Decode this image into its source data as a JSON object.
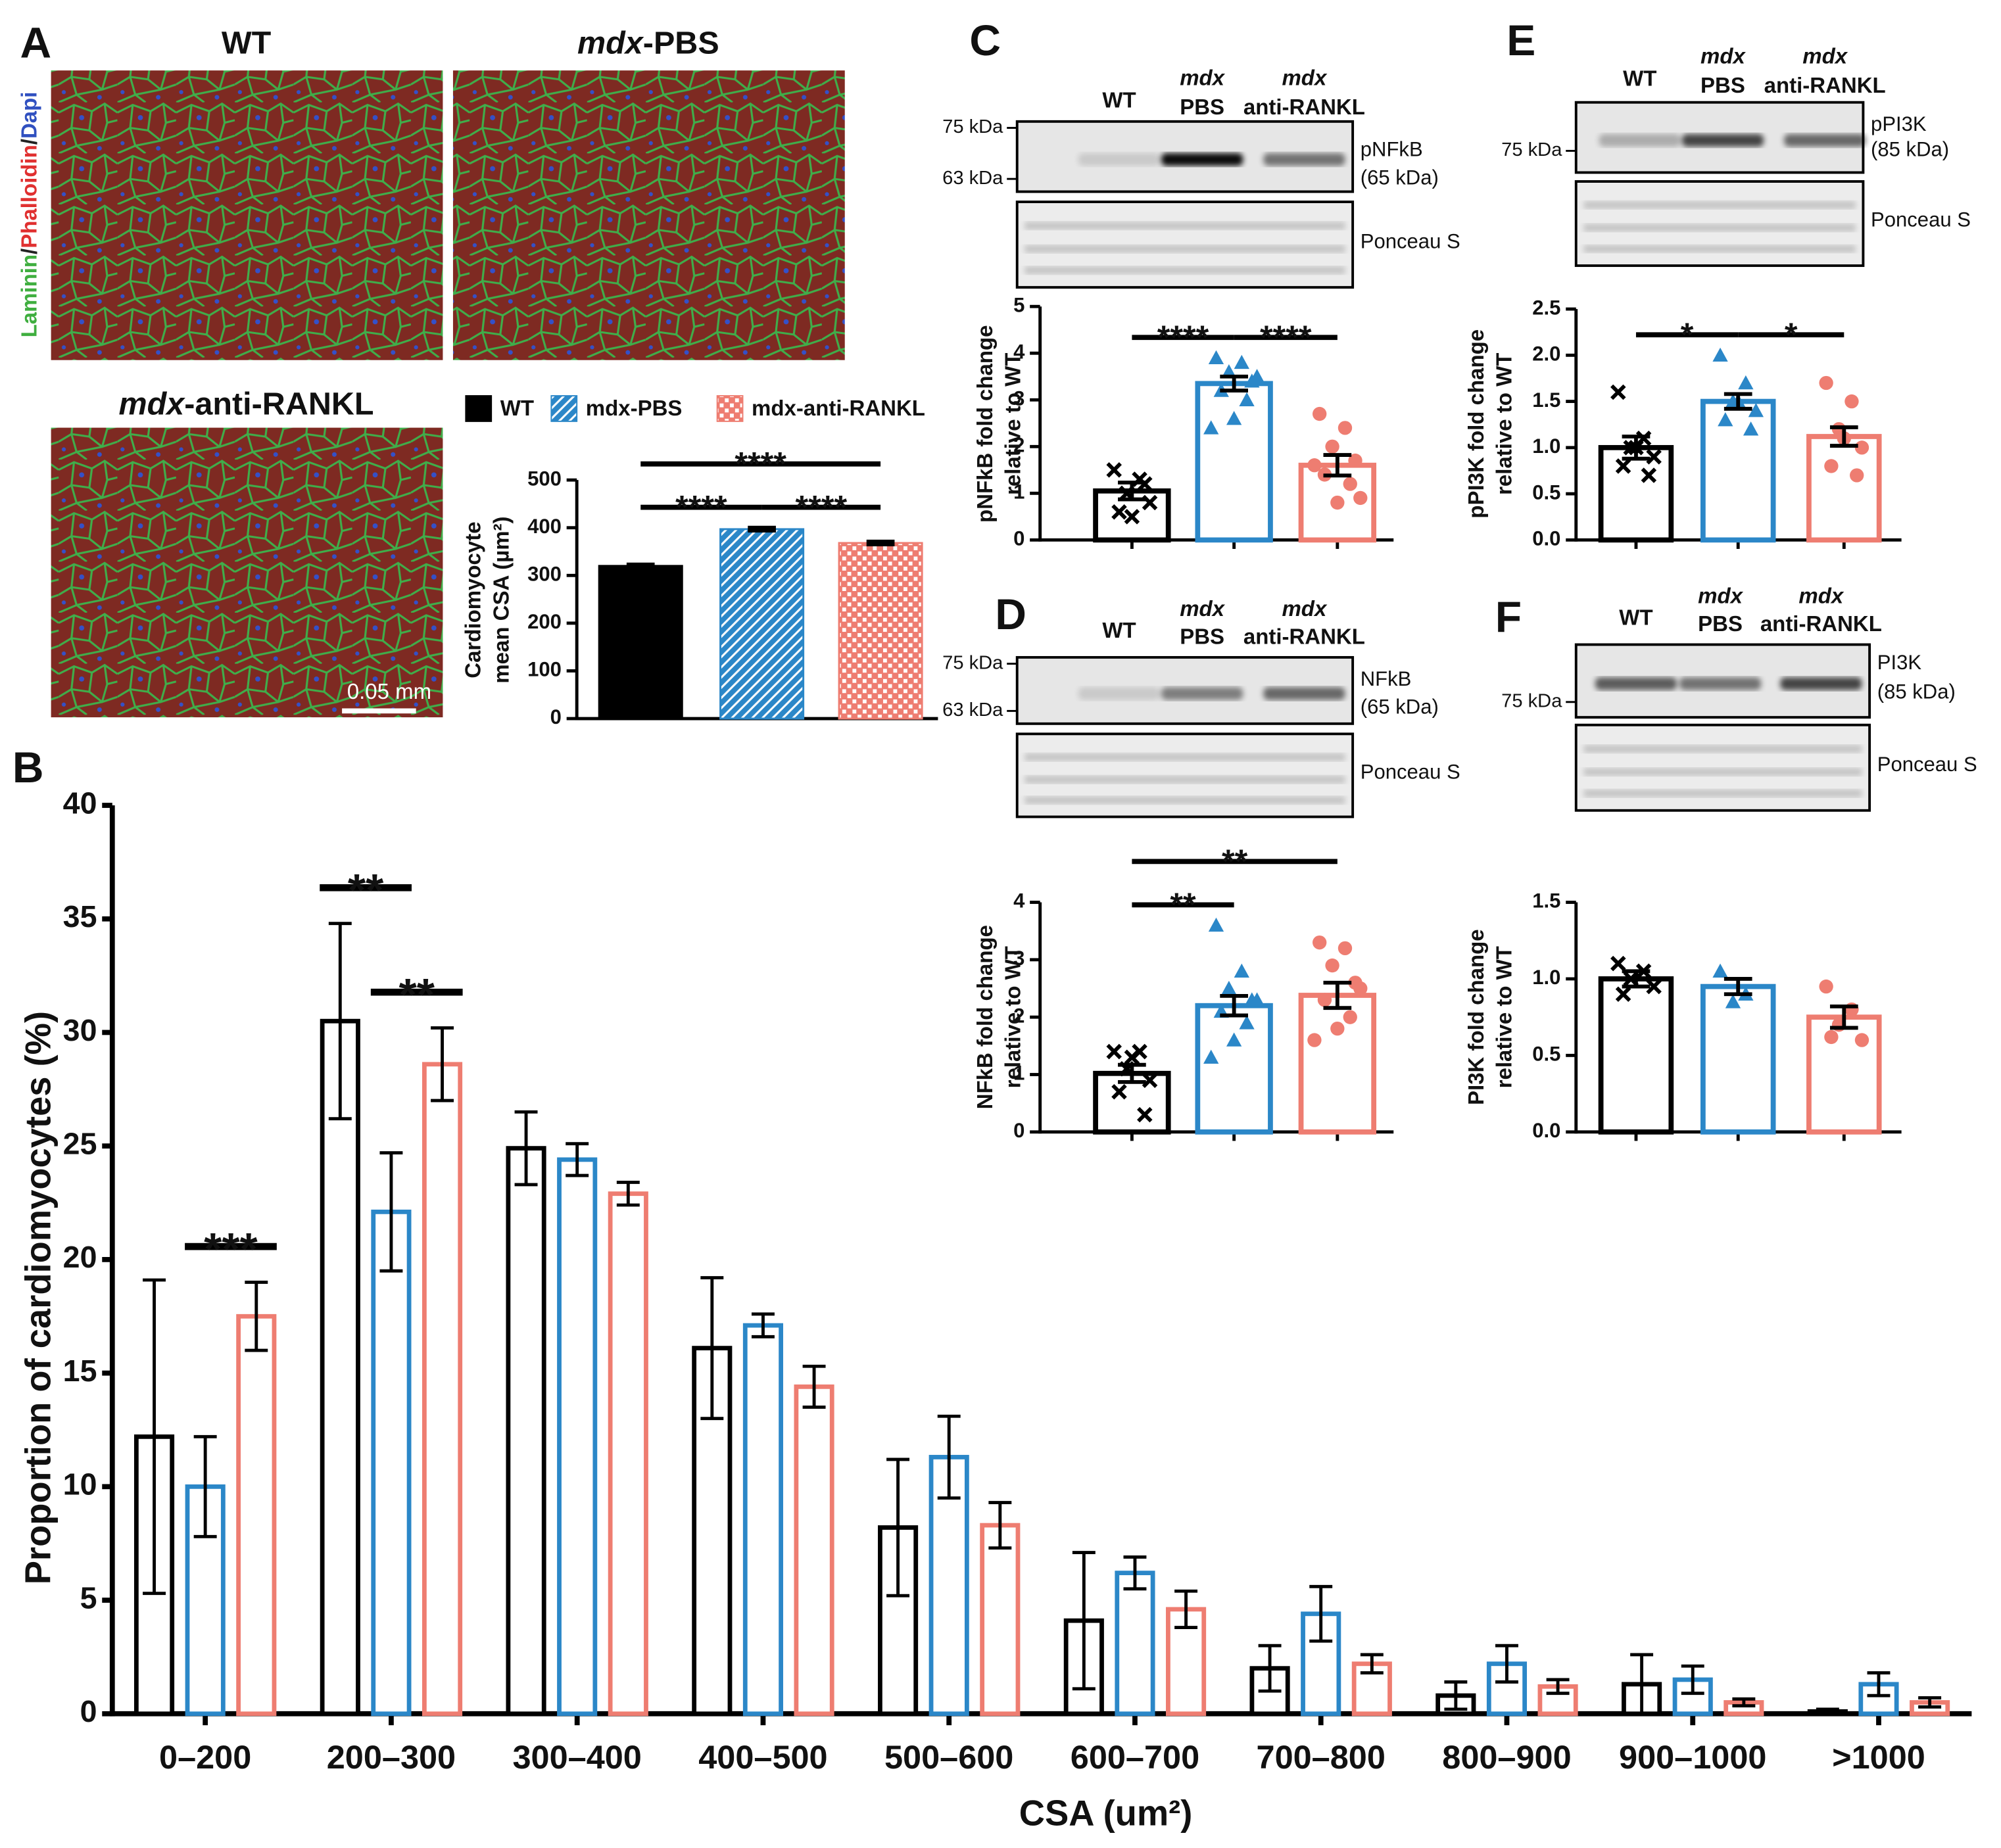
{
  "figure": {
    "panels": [
      "A",
      "B",
      "C",
      "D",
      "E",
      "F"
    ],
    "stain": [
      "Laminin",
      "/",
      "Phalloidin",
      "/",
      "Dapi"
    ],
    "images": [
      [
        "WT"
      ],
      [
        "mdx",
        "-PBS"
      ],
      [
        "mdx",
        "-anti-RANKL"
      ]
    ],
    "scale_bar": "0.05 mm",
    "blots": [
      {
        "lanes": [
          [
            "WT"
          ],
          [
            "mdx",
            "PBS"
          ],
          [
            "mdx",
            "anti-RANKL"
          ]
        ],
        "markers": [
          "75 kDa",
          "63 kDa"
        ],
        "target": [
          "pNFkB",
          "(65 kDa)"
        ],
        "loading": "Ponceau S"
      },
      {
        "lanes": [
          [
            "WT"
          ],
          [
            "mdx",
            "PBS"
          ],
          [
            "mdx",
            "anti-RANKL"
          ]
        ],
        "markers": [
          "75 kDa",
          "63 kDa"
        ],
        "target": [
          "NFkB",
          "(65 kDa)"
        ],
        "loading": "Ponceau S"
      },
      {
        "lanes": [
          [
            "WT"
          ],
          [
            "mdx",
            "PBS"
          ],
          [
            "mdx",
            "anti-RANKL"
          ]
        ],
        "markers": [
          "75 kDa"
        ],
        "target": [
          "pPI3K",
          "(85 kDa)"
        ],
        "loading": "Ponceau S"
      },
      {
        "lanes": [
          [
            "WT"
          ],
          [
            "mdx",
            "PBS"
          ],
          [
            "mdx",
            "anti-RANKL"
          ]
        ],
        "markers": [
          "75 kDa"
        ],
        "target": [
          "PI3K",
          "(85 kDa)"
        ],
        "loading": "Ponceau S"
      }
    ]
  },
  "chart_data": [
    {
      "type": "bar",
      "categories": [
        "WT",
        "mdx-PBS",
        "mdx-anti-RANKL"
      ],
      "values": [
        320,
        397,
        368
      ],
      "errors": [
        3,
        3,
        3
      ],
      "colors": [
        "#000000",
        "#2b87c8",
        "#ee7d71"
      ],
      "fills": [
        "solid",
        "hatch",
        "checker"
      ],
      "legend": "top",
      "ylabel": [
        "Cardiomyocyte",
        "mean CSA (µm²)"
      ],
      "ylim": [
        0,
        500
      ],
      "yticks": [
        0,
        100,
        200,
        300,
        400,
        500
      ],
      "annotations": [
        {
          "text": "****",
          "from": 0,
          "to": 1
        },
        {
          "text": "****",
          "from": 1,
          "to": 2
        },
        {
          "text": "****",
          "from": 0,
          "to": 2
        }
      ]
    },
    {
      "type": "bar",
      "categories": [
        "0–200",
        "200–300",
        "300–400",
        "400–500",
        "500–600",
        "600–700",
        "700–800",
        "800–900",
        "900–1000",
        ">1000"
      ],
      "series": [
        {
          "color": "#000000",
          "values": [
            12.2,
            30.5,
            24.9,
            16.1,
            8.2,
            4.1,
            2.0,
            0.8,
            1.3,
            0.1
          ],
          "errors": [
            6.9,
            4.3,
            1.6,
            3.1,
            3.0,
            3.0,
            1.0,
            0.6,
            1.3,
            0.1
          ]
        },
        {
          "color": "#2b87c8",
          "values": [
            10.0,
            22.1,
            24.4,
            17.1,
            11.3,
            6.2,
            4.4,
            2.2,
            1.5,
            1.3
          ],
          "errors": [
            2.2,
            2.6,
            0.7,
            0.5,
            1.8,
            0.7,
            1.2,
            0.8,
            0.6,
            0.5
          ]
        },
        {
          "color": "#ee7d71",
          "values": [
            17.5,
            28.6,
            22.9,
            14.4,
            8.3,
            4.6,
            2.2,
            1.2,
            0.5,
            0.5
          ],
          "errors": [
            1.5,
            1.6,
            0.5,
            0.9,
            1.0,
            0.8,
            0.4,
            0.3,
            0.15,
            0.2
          ]
        }
      ],
      "xlabel": "CSA (um²)",
      "ylabel": "Proportion of cardiomyocytes (%)",
      "ylim": [
        0,
        40
      ],
      "yticks": [
        0,
        5,
        10,
        15,
        20,
        25,
        30,
        35,
        40
      ],
      "annotations": [
        {
          "text": "***",
          "category": 0,
          "from": 1,
          "to": 2
        },
        {
          "text": "**",
          "category": 1,
          "from": 0,
          "to": 1
        },
        {
          "text": "**",
          "category": 1,
          "from": 1,
          "to": 2
        }
      ]
    },
    {
      "type": "bar",
      "values": [
        1.05,
        3.35,
        1.6
      ],
      "errors": [
        0.18,
        0.15,
        0.22
      ],
      "colors": [
        "#000000",
        "#2b87c8",
        "#ee7d71"
      ],
      "style": "outline",
      "markers": [
        "cross",
        "triangle",
        "circle"
      ],
      "points": [
        [
          1.5,
          1.3,
          1.0,
          0.8,
          0.6,
          1.2,
          0.5
        ],
        [
          3.9,
          3.8,
          3.6,
          3.4,
          3.2,
          3.0,
          2.6,
          2.4,
          3.5
        ],
        [
          2.7,
          2.4,
          2.0,
          1.7,
          1.4,
          1.2,
          0.8,
          1.6,
          0.9
        ]
      ],
      "ylabel": [
        "pNFkB fold change",
        "relative to WT"
      ],
      "ylim": [
        0,
        5
      ],
      "yticks": [
        0,
        1,
        2,
        3,
        4,
        5
      ],
      "annotations": [
        {
          "text": "****",
          "from": 0,
          "to": 1
        },
        {
          "text": "****",
          "from": 1,
          "to": 2
        }
      ]
    },
    {
      "type": "bar",
      "values": [
        1.02,
        2.2,
        2.38
      ],
      "errors": [
        0.15,
        0.17,
        0.22
      ],
      "colors": [
        "#000000",
        "#2b87c8",
        "#ee7d71"
      ],
      "style": "outline",
      "markers": [
        "cross",
        "triangle",
        "circle"
      ],
      "points": [
        [
          1.4,
          1.4,
          1.1,
          0.9,
          0.7,
          0.3,
          1.3
        ],
        [
          3.6,
          2.8,
          2.5,
          2.3,
          2.1,
          1.9,
          1.6,
          1.3,
          2.3
        ],
        [
          3.3,
          3.2,
          2.9,
          2.6,
          2.3,
          2.0,
          1.8,
          1.6,
          2.5
        ]
      ],
      "ylabel": [
        "NFkB fold change",
        "relative to WT"
      ],
      "ylim": [
        0,
        4
      ],
      "yticks": [
        0,
        1,
        2,
        3,
        4
      ],
      "annotations": [
        {
          "text": "**",
          "from": 0,
          "to": 1
        },
        {
          "text": "**",
          "from": 0,
          "to": 2
        }
      ]
    },
    {
      "type": "bar",
      "values": [
        1.0,
        1.5,
        1.12
      ],
      "errors": [
        0.12,
        0.08,
        0.1
      ],
      "colors": [
        "#000000",
        "#2b87c8",
        "#ee7d71"
      ],
      "style": "outline",
      "markers": [
        "cross",
        "triangle",
        "circle"
      ],
      "points": [
        [
          1.6,
          1.1,
          1.0,
          0.9,
          0.8,
          0.7,
          1.0
        ],
        [
          2.0,
          1.7,
          1.5,
          1.4,
          1.3,
          1.2,
          1.5
        ],
        [
          1.7,
          1.5,
          1.2,
          1.0,
          0.8,
          0.7,
          1.1
        ]
      ],
      "ylabel": [
        "pPI3K fold change",
        "relative to WT"
      ],
      "ylim": [
        0,
        2.5
      ],
      "yticks": [
        {
          "value": 0,
          "label": "0.0"
        },
        0.5,
        {
          "value": 1,
          "label": "1.0"
        },
        1.5,
        {
          "value": 2,
          "label": "2.0"
        },
        2.5
      ],
      "annotations": [
        {
          "text": "*",
          "from": 0,
          "to": 1
        },
        {
          "text": "*",
          "from": 1,
          "to": 2
        }
      ]
    },
    {
      "type": "bar",
      "values": [
        1.0,
        0.95,
        0.75
      ],
      "errors": [
        0.05,
        0.05,
        0.07
      ],
      "colors": [
        "#000000",
        "#2b87c8",
        "#ee7d71"
      ],
      "style": "outline",
      "markers": [
        "cross",
        "triangle",
        "circle"
      ],
      "points": [
        [
          1.1,
          1.05,
          1.0,
          0.95,
          0.9
        ],
        [
          1.05,
          0.9,
          0.85
        ],
        [
          0.95,
          0.8,
          0.7,
          0.6,
          0.62
        ]
      ],
      "ylabel": [
        "PI3K fold change",
        "relative to WT"
      ],
      "ylim": [
        0,
        1.5
      ],
      "yticks": [
        {
          "value": 0,
          "label": "0.0"
        },
        0.5,
        {
          "value": 1,
          "label": "1.0"
        },
        1.5
      ],
      "annotations": []
    }
  ]
}
